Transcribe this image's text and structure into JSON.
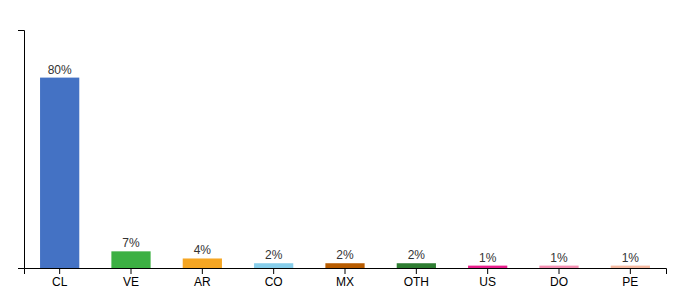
{
  "chart_data": {
    "type": "bar",
    "categories": [
      "CL",
      "VE",
      "AR",
      "CO",
      "MX",
      "OTH",
      "US",
      "DO",
      "PE"
    ],
    "values": [
      80,
      7,
      4,
      2,
      2,
      2,
      1,
      1,
      1
    ],
    "value_labels": [
      "80%",
      "7%",
      "4%",
      "2%",
      "2%",
      "2%",
      "1%",
      "1%",
      "1%"
    ],
    "colors": [
      "#4472c4",
      "#3cb043",
      "#f5a623",
      "#87ceeb",
      "#b85c00",
      "#2e7d32",
      "#e91e8c",
      "#f48fb1",
      "#f4b8a0"
    ],
    "ylim": [
      0,
      100
    ],
    "data_labels": true,
    "tick_labels": "x",
    "grid": false
  }
}
